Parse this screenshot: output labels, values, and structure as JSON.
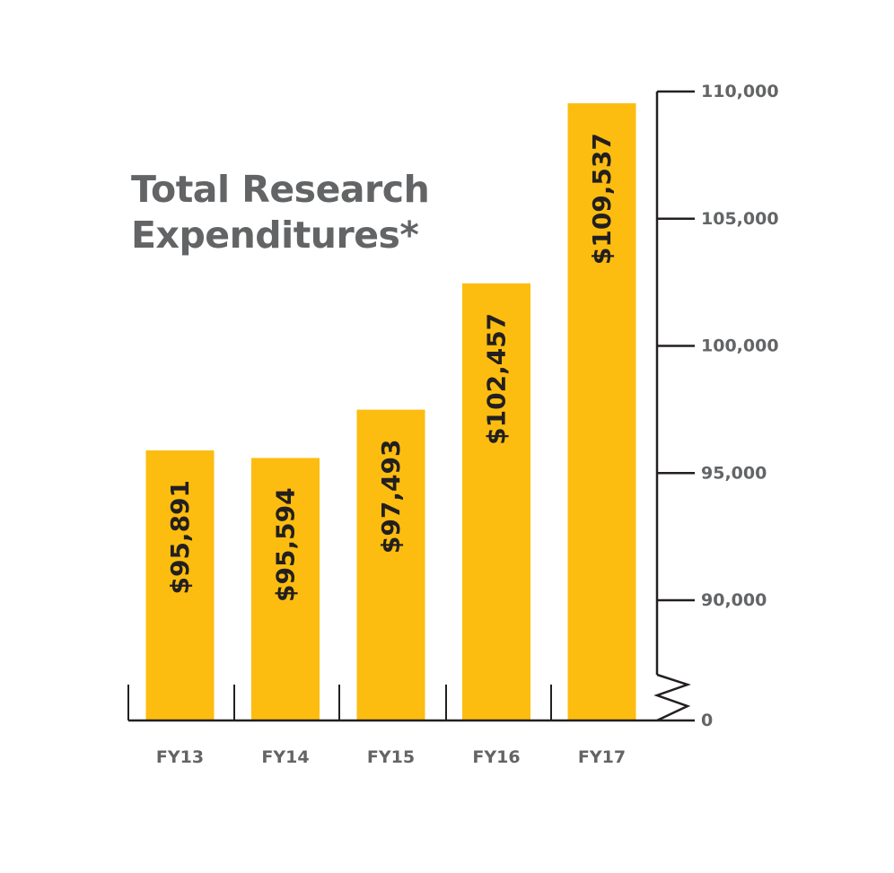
{
  "chart_data": {
    "type": "bar",
    "title_lines": [
      "Total Research",
      "Expenditures*"
    ],
    "categories": [
      "FY13",
      "FY14",
      "FY15",
      "FY16",
      "FY17"
    ],
    "values": [
      95891,
      95594,
      97493,
      102457,
      109537
    ],
    "data_labels": [
      "$95,891",
      "$95,594",
      "$97,493",
      "$102,457",
      "$109,537"
    ],
    "y_ticks": [
      {
        "value": 110000,
        "label": "110,000"
      },
      {
        "value": 105000,
        "label": "105,000"
      },
      {
        "value": 100000,
        "label": "100,000"
      },
      {
        "value": 95000,
        "label": "95,000"
      },
      {
        "value": 90000,
        "label": "90,000"
      },
      {
        "value": 0,
        "label": "0"
      }
    ],
    "ylim": [
      0,
      110000
    ],
    "axis_break": true,
    "y_axis_side": "right",
    "grid": false,
    "colors": {
      "bar": "#FCBD10",
      "axis": "#231F20",
      "text": "#636466",
      "data_label": "#231F20"
    }
  }
}
